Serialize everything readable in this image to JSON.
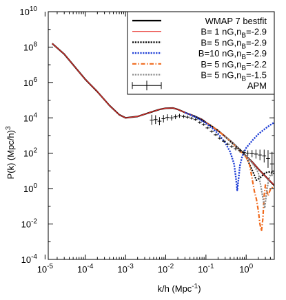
{
  "chart_data": {
    "type": "line",
    "title": "",
    "xlabel": "k/h (Mpc",
    "xlabel_sup": "-1",
    "xlabel_end": ")",
    "ylabel": "P(k) (Mpc/h)",
    "ylabel_sup": "3",
    "xscale": "log",
    "yscale": "log",
    "xlim": [
      1.2e-05,
      5
    ],
    "ylim": [
      0.0001,
      10000000000.0
    ],
    "grid": false,
    "legend_position": "top-right",
    "x_ticks": [
      {
        "value": 1e-05,
        "base": "10",
        "exp": "-5"
      },
      {
        "value": 0.0001,
        "base": "10",
        "exp": "-4"
      },
      {
        "value": 0.001,
        "base": "10",
        "exp": "-3"
      },
      {
        "value": 0.01,
        "base": "10",
        "exp": "-2"
      },
      {
        "value": 0.1,
        "base": "10",
        "exp": "-1"
      },
      {
        "value": 1,
        "base": "10",
        "exp": "0"
      }
    ],
    "y_ticks": [
      {
        "value": 0.0001,
        "base": "10",
        "exp": "-4"
      },
      {
        "value": 0.01,
        "base": "10",
        "exp": "-2"
      },
      {
        "value": 1,
        "base": "10",
        "exp": "0"
      },
      {
        "value": 100.0,
        "base": "10",
        "exp": "2"
      },
      {
        "value": 10000.0,
        "base": "10",
        "exp": "4"
      },
      {
        "value": 1000000.0,
        "base": "10",
        "exp": "6"
      },
      {
        "value": 100000000.0,
        "base": "10",
        "exp": "8"
      },
      {
        "value": 10000000000.0,
        "base": "10",
        "exp": "10"
      }
    ],
    "series": [
      {
        "name": "WMAP 7 bestfit",
        "legend_parts": [
          {
            "t": "WMAP 7 bestfit"
          }
        ],
        "color": "#000000",
        "style": "solid",
        "width": 2.2,
        "x": [
          1.5e-05,
          3e-05,
          6e-05,
          0.0001,
          0.0002,
          0.0004,
          0.0007,
          0.001,
          0.002,
          0.004,
          0.007,
          0.01,
          0.015,
          0.02,
          0.03,
          0.05,
          0.08,
          0.1,
          0.15,
          0.2,
          0.3,
          0.5,
          0.7,
          1,
          1.5,
          2,
          3,
          5
        ],
        "y": [
          160000000.0,
          40000000.0,
          6000000.0,
          1500000.0,
          300000.0,
          50000.0,
          15000.0,
          10000.0,
          12000.0,
          20000.0,
          30000.0,
          35000.0,
          36000.0,
          30000.0,
          20000.0,
          13000.0,
          8000.0,
          5500.0,
          3000.0,
          1900.0,
          900,
          330,
          160,
          70,
          28,
          13,
          5,
          1.5
        ]
      },
      {
        "name": "B=1 nG,nB=-2.9",
        "legend_parts": [
          {
            "t": "B=  1 nG,n"
          },
          {
            "t": "B",
            "sub": true
          },
          {
            "t": "=-2.9"
          }
        ],
        "color": "#e8302a",
        "style": "solid",
        "width": 1.2,
        "x": [
          1.5e-05,
          3e-05,
          6e-05,
          0.0001,
          0.0002,
          0.0004,
          0.0007,
          0.001,
          0.002,
          0.004,
          0.007,
          0.01,
          0.015,
          0.02,
          0.03,
          0.05,
          0.08,
          0.1,
          0.15,
          0.2,
          0.3,
          0.5,
          0.7,
          1,
          1.5,
          2,
          3,
          5
        ],
        "y": [
          160000000.0,
          40000000.0,
          6000000.0,
          1500000.0,
          300000.0,
          50000.0,
          15000.0,
          10000.0,
          12000.0,
          20000.0,
          30000.0,
          35000.0,
          36000.0,
          30000.0,
          20000.0,
          13000.0,
          8000.0,
          5500.0,
          3000.0,
          1900.0,
          900,
          330,
          160,
          70,
          28,
          13,
          5,
          1.6
        ]
      },
      {
        "name": "B=5 nG,nB=-2.9",
        "legend_parts": [
          {
            "t": "B=  5 nG,n"
          },
          {
            "t": "B",
            "sub": true
          },
          {
            "t": "=-2.9"
          }
        ],
        "color": "#000000",
        "style": "dotted",
        "width": 2.2,
        "x": [
          0.05,
          0.1,
          0.2,
          0.3,
          0.5,
          0.8,
          1.0,
          1.2,
          1.5,
          1.8,
          2.2,
          3,
          4,
          5
        ],
        "y": [
          13000.0,
          5500.0,
          1900.0,
          850,
          300,
          120,
          60,
          25,
          8,
          3,
          4,
          8,
          9,
          7
        ]
      },
      {
        "name": "B=10 nG,nB=-2.9",
        "legend_parts": [
          {
            "t": "B=10 nG,n"
          },
          {
            "t": "B",
            "sub": true
          },
          {
            "t": "=-2.9"
          }
        ],
        "color": "#1f3fd6",
        "style": "dotted",
        "width": 2.4,
        "x": [
          0.03,
          0.06,
          0.1,
          0.15,
          0.2,
          0.3,
          0.4,
          0.5,
          0.55,
          0.6,
          0.65,
          0.7,
          0.8,
          1,
          1.5,
          2,
          3,
          4,
          5
        ],
        "y": [
          20000.0,
          10000.0,
          5000.0,
          2400.0,
          1300.0,
          400,
          120,
          25,
          5,
          0.8,
          4,
          20,
          70,
          200,
          600,
          1200,
          2500,
          4000,
          5500
        ]
      },
      {
        "name": "B=5 nG,nB=-2.2",
        "legend_parts": [
          {
            "t": "B=  5 nG,n"
          },
          {
            "t": "B",
            "sub": true
          },
          {
            "t": "=-2.2"
          }
        ],
        "color": "#f06a1d",
        "style": "dashdot",
        "width": 2.2,
        "x": [
          0.1,
          0.2,
          0.4,
          0.6,
          0.8,
          1.0,
          1.2,
          1.4,
          1.6,
          1.8,
          2.0,
          2.2,
          2.4,
          2.6,
          2.8,
          3.0,
          3.5,
          4,
          5
        ],
        "y": [
          5500.0,
          1900.0,
          500,
          200,
          100,
          60,
          25,
          4,
          0.7,
          0.25,
          0.06,
          0.01,
          0.004,
          0.02,
          0.4,
          1.6,
          0.4,
          0.9,
          1.5
        ]
      },
      {
        "name": "B=5 nG,nB=-1.5",
        "legend_parts": [
          {
            "t": "B=  5 nG,n"
          },
          {
            "t": "B",
            "sub": true
          },
          {
            "t": "=-1.5"
          }
        ],
        "color": "#8c8c8c",
        "style": "dotted",
        "width": 2.2,
        "x": [
          0.3,
          0.5,
          0.8,
          1.0,
          1.3,
          1.6,
          2.0,
          2.3,
          2.6,
          2.9,
          3.2,
          3.6,
          4.0,
          4.5,
          5
        ],
        "y": [
          900,
          330,
          120,
          70,
          35,
          18,
          8,
          1.5,
          0.3,
          0.08,
          0.6,
          3,
          6,
          9,
          10
        ]
      }
    ],
    "apm": {
      "name": "APM",
      "legend_parts": [
        {
          "t": "APM"
        }
      ],
      "color": "#000000",
      "points": [
        {
          "x": 0.0045,
          "y": 7500,
          "ylo": 4000,
          "yhi": 15000.0
        },
        {
          "x": 0.0056,
          "y": 8000,
          "ylo": 4500,
          "yhi": 14000.0
        },
        {
          "x": 0.007,
          "y": 6500,
          "ylo": 3800,
          "yhi": 11000.0
        },
        {
          "x": 0.0088,
          "y": 9000,
          "ylo": 5500,
          "yhi": 14500.0
        },
        {
          "x": 0.011,
          "y": 10500.0,
          "ylo": 7000,
          "yhi": 16000.0
        },
        {
          "x": 0.014,
          "y": 10000.0,
          "ylo": 7000,
          "yhi": 14500.0
        },
        {
          "x": 0.0175,
          "y": 11500.0,
          "ylo": 8500,
          "yhi": 15500.0
        },
        {
          "x": 0.022,
          "y": 13000.0,
          "ylo": 10000.0,
          "yhi": 17000.0
        },
        {
          "x": 0.028,
          "y": 12000.0,
          "ylo": 9500,
          "yhi": 15000.0
        },
        {
          "x": 0.035,
          "y": 11000.0,
          "ylo": 9000,
          "yhi": 13500.0
        },
        {
          "x": 0.044,
          "y": 9500,
          "ylo": 8000,
          "yhi": 11300.0
        },
        {
          "x": 0.055,
          "y": 8000,
          "ylo": 6800,
          "yhi": 9400
        },
        {
          "x": 0.07,
          "y": 5500,
          "ylo": 4700,
          "yhi": 6400
        },
        {
          "x": 0.088,
          "y": 4200,
          "ylo": 3600,
          "yhi": 4900
        },
        {
          "x": 0.11,
          "y": 2700,
          "ylo": 2300,
          "yhi": 3200
        },
        {
          "x": 0.14,
          "y": 1700,
          "ylo": 1450,
          "yhi": 2000
        },
        {
          "x": 0.175,
          "y": 1100,
          "ylo": 950,
          "yhi": 1280
        },
        {
          "x": 0.22,
          "y": 700,
          "ylo": 600,
          "yhi": 820
        },
        {
          "x": 0.28,
          "y": 480,
          "ylo": 410,
          "yhi": 560
        },
        {
          "x": 0.35,
          "y": 330,
          "ylo": 280,
          "yhi": 390
        },
        {
          "x": 0.44,
          "y": 240,
          "ylo": 200,
          "yhi": 290
        },
        {
          "x": 0.55,
          "y": 180,
          "ylo": 145,
          "yhi": 225
        },
        {
          "x": 0.7,
          "y": 140,
          "ylo": 110,
          "yhi": 180
        },
        {
          "x": 0.88,
          "y": 110,
          "ylo": 80,
          "yhi": 150
        },
        {
          "x": 1.1,
          "y": 100,
          "ylo": 70,
          "yhi": 145
        },
        {
          "x": 1.4,
          "y": 95,
          "ylo": 60,
          "yhi": 150
        },
        {
          "x": 1.75,
          "y": 90,
          "ylo": 50,
          "yhi": 160
        },
        {
          "x": 2.2,
          "y": 80,
          "ylo": 40,
          "yhi": 160
        },
        {
          "x": 2.8,
          "y": 70,
          "ylo": 30,
          "yhi": 160
        },
        {
          "x": 3.5,
          "y": 50,
          "ylo": 15,
          "yhi": 150
        },
        {
          "x": 4.4,
          "y": 25,
          "ylo": 5,
          "yhi": 120
        }
      ]
    }
  }
}
